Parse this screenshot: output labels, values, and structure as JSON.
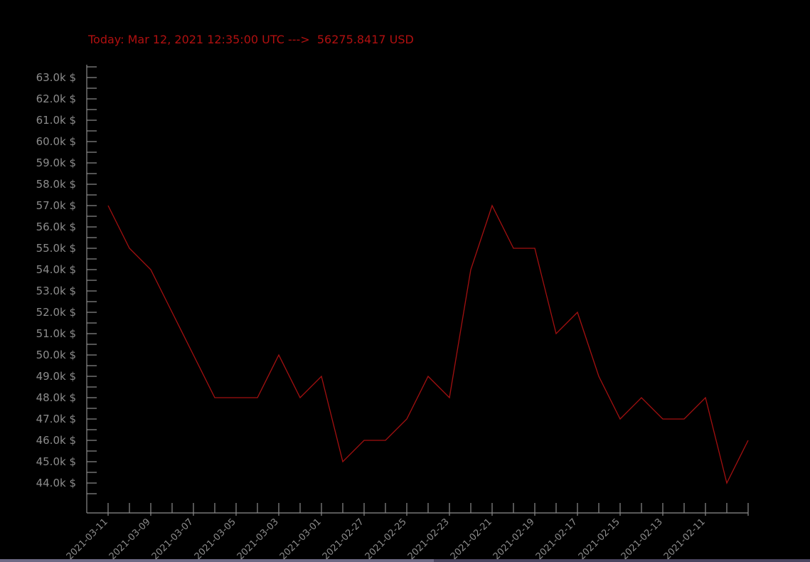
{
  "chart_data": {
    "type": "line",
    "title": "Today: Mar 12, 2021 12:35:00 UTC --->  56275.8417 USD",
    "xlabel": "",
    "ylabel": "",
    "ylim": [
      43000,
      63500
    ],
    "y_ticks": [
      44000,
      45000,
      46000,
      47000,
      48000,
      49000,
      50000,
      51000,
      52000,
      53000,
      54000,
      55000,
      56000,
      57000,
      58000,
      59000,
      60000,
      61000,
      62000,
      63000
    ],
    "y_tick_labels": [
      "44.0k $",
      "45.0k $",
      "46.0k $",
      "47.0k $",
      "48.0k $",
      "49.0k $",
      "50.0k $",
      "51.0k $",
      "52.0k $",
      "53.0k $",
      "54.0k $",
      "55.0k $",
      "56.0k $",
      "57.0k $",
      "58.0k $",
      "59.0k $",
      "60.0k $",
      "61.0k $",
      "62.0k $",
      "63.0k $"
    ],
    "x_tick_labels": [
      "2021-03-11",
      "2021-03-09",
      "2021-03-07",
      "2021-03-05",
      "2021-03-03",
      "2021-03-01",
      "2021-02-27",
      "2021-02-25",
      "2021-02-23",
      "2021-02-21",
      "2021-02-19",
      "2021-02-17",
      "2021-02-15",
      "2021-02-13",
      "2021-02-11"
    ],
    "x": [
      "2021-03-11",
      "2021-03-10",
      "2021-03-09",
      "2021-03-08",
      "2021-03-07",
      "2021-03-06",
      "2021-03-05",
      "2021-03-04",
      "2021-03-03",
      "2021-03-02",
      "2021-03-01",
      "2021-02-28",
      "2021-02-27",
      "2021-02-26",
      "2021-02-25",
      "2021-02-24",
      "2021-02-23",
      "2021-02-22",
      "2021-02-21",
      "2021-02-20",
      "2021-02-19",
      "2021-02-18",
      "2021-02-17",
      "2021-02-16",
      "2021-02-15",
      "2021-02-14",
      "2021-02-13",
      "2021-02-12",
      "2021-02-11",
      "2021-02-10",
      "2021-02-09"
    ],
    "values": [
      57000,
      55000,
      54000,
      52000,
      50000,
      48000,
      48000,
      48000,
      50000,
      48000,
      49000,
      45000,
      46000,
      46000,
      47000,
      49000,
      48000,
      54000,
      57000,
      55000,
      55000,
      51000,
      52000,
      49000,
      47000,
      48000,
      47000,
      47000,
      48000,
      44000,
      46000
    ],
    "grid": false,
    "colors": {
      "background": "#000000",
      "axis": "#8c8c8c",
      "tick_text": "#8c8c8c",
      "line": "#a31010",
      "title": "#b01010"
    }
  }
}
